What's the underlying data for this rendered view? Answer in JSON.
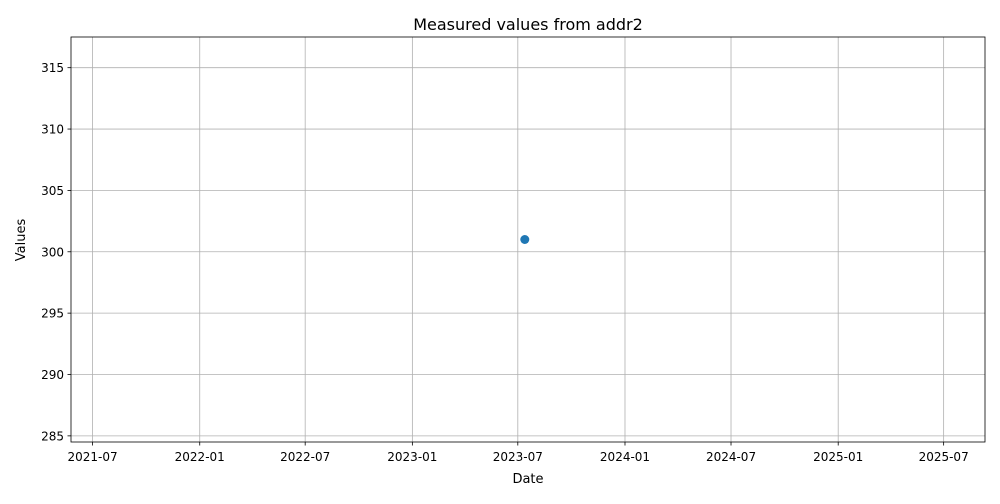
{
  "chart_data": {
    "type": "scatter",
    "title": "Measured values from addr2",
    "xlabel": "Date",
    "ylabel": "Values",
    "x_axis": "date",
    "xlim": [
      "2021-05-25",
      "2025-09-10"
    ],
    "ylim": [
      284.5,
      317.5
    ],
    "x_ticks": [
      "2021-07",
      "2022-01",
      "2022-07",
      "2023-01",
      "2023-07",
      "2024-01",
      "2024-07",
      "2025-01",
      "2025-07"
    ],
    "y_ticks": [
      285,
      290,
      295,
      300,
      305,
      310,
      315
    ],
    "grid": true,
    "legend": "none",
    "series": [
      {
        "color": "#1f77b4",
        "points": [
          {
            "x": "2023-07-13",
            "y": 301
          }
        ]
      }
    ]
  }
}
